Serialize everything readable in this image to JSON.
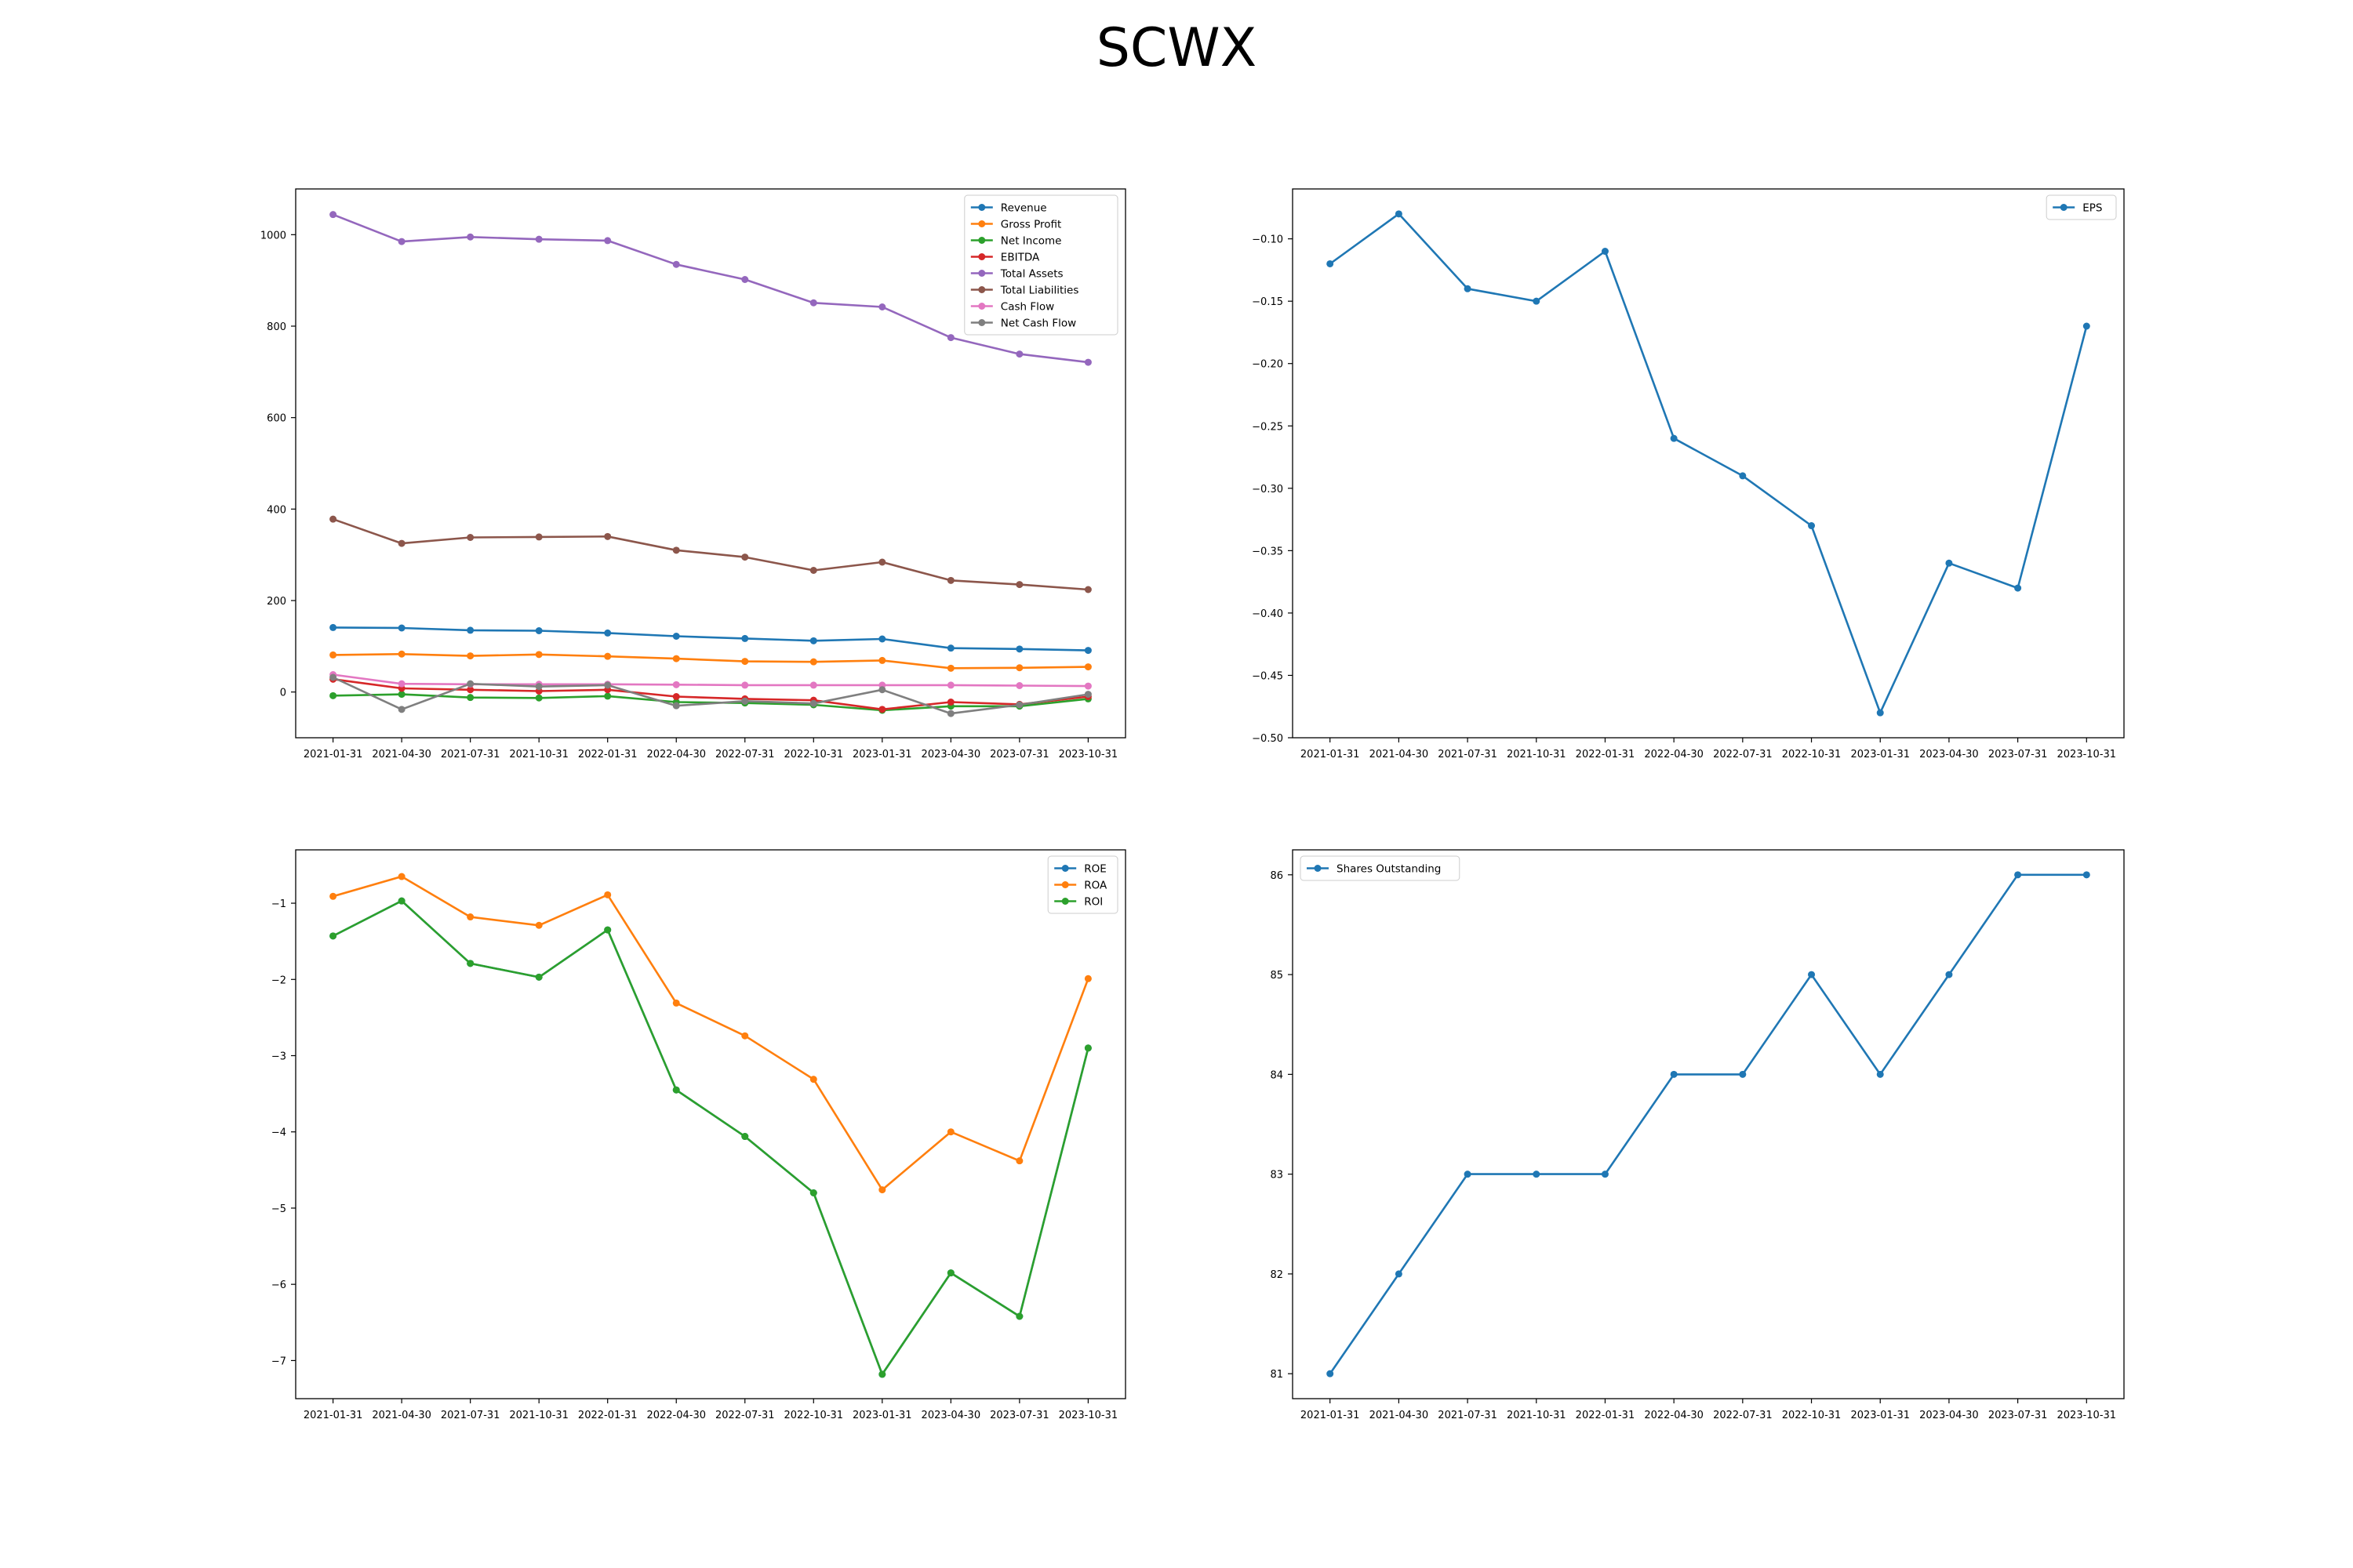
{
  "figure": {
    "title": "SCWX"
  },
  "chart_data": [
    {
      "type": "line",
      "x": [
        "2021-01-31",
        "2021-04-30",
        "2021-07-31",
        "2021-10-31",
        "2022-01-31",
        "2022-04-30",
        "2022-07-31",
        "2022-10-31",
        "2023-01-31",
        "2023-04-30",
        "2023-07-31",
        "2023-10-31"
      ],
      "ylim": [
        -100,
        1100
      ],
      "yticks": [
        0,
        200,
        400,
        600,
        800,
        1000
      ],
      "grid": false,
      "legend": "top-right",
      "series": [
        {
          "name": "Revenue",
          "color": "#1f77b4",
          "values": [
            141,
            140,
            135,
            134,
            129,
            122,
            117,
            112,
            116,
            96,
            94,
            91
          ]
        },
        {
          "name": "Gross Profit",
          "color": "#ff7f0e",
          "values": [
            81,
            83,
            79,
            82,
            78,
            73,
            67,
            66,
            69,
            52,
            53,
            55
          ]
        },
        {
          "name": "Net Income",
          "color": "#2ca02c",
          "values": [
            -8,
            -5,
            -12,
            -13,
            -9,
            -22,
            -24,
            -28,
            -40,
            -31,
            -31,
            -15
          ]
        },
        {
          "name": "EBITDA",
          "color": "#d62728",
          "values": [
            28,
            8,
            5,
            2,
            5,
            -10,
            -15,
            -18,
            -38,
            -22,
            -27,
            -10
          ]
        },
        {
          "name": "Total Assets",
          "color": "#9467bd",
          "values": [
            1044,
            985,
            995,
            990,
            987,
            935,
            902,
            851,
            842,
            775,
            739,
            721
          ]
        },
        {
          "name": "Total Liabilities",
          "color": "#8c564b",
          "values": [
            378,
            325,
            338,
            339,
            340,
            310,
            295,
            266,
            284,
            244,
            235,
            224
          ]
        },
        {
          "name": "Cash Flow",
          "color": "#e377c2",
          "values": [
            38,
            18,
            17,
            17,
            17,
            16,
            15,
            15,
            15,
            15,
            14,
            13
          ]
        },
        {
          "name": "Net Cash Flow",
          "color": "#7f7f7f",
          "values": [
            32,
            -38,
            18,
            12,
            15,
            -30,
            -20,
            -25,
            5,
            -47,
            -28,
            -5
          ]
        }
      ]
    },
    {
      "type": "line",
      "x": [
        "2021-01-31",
        "2021-04-30",
        "2021-07-31",
        "2021-10-31",
        "2022-01-31",
        "2022-04-30",
        "2022-07-31",
        "2022-10-31",
        "2023-01-31",
        "2023-04-30",
        "2023-07-31",
        "2023-10-31"
      ],
      "ylim": [
        -0.5,
        -0.06
      ],
      "yticks": [
        -0.5,
        -0.45,
        -0.4,
        -0.35,
        -0.3,
        -0.25,
        -0.2,
        -0.15,
        -0.1
      ],
      "yticklabels": [
        "−0.50",
        "−0.45",
        "−0.40",
        "−0.35",
        "−0.30",
        "−0.25",
        "−0.20",
        "−0.15",
        "−0.10"
      ],
      "grid": false,
      "legend": "top-right",
      "series": [
        {
          "name": "EPS",
          "color": "#1f77b4",
          "values": [
            -0.12,
            -0.08,
            -0.14,
            -0.15,
            -0.11,
            -0.26,
            -0.29,
            -0.33,
            -0.48,
            -0.36,
            -0.38,
            -0.17
          ]
        }
      ]
    },
    {
      "type": "line",
      "x": [
        "2021-01-31",
        "2021-04-30",
        "2021-07-31",
        "2021-10-31",
        "2022-01-31",
        "2022-04-30",
        "2022-07-31",
        "2022-10-31",
        "2023-01-31",
        "2023-04-30",
        "2023-07-31",
        "2023-10-31"
      ],
      "ylim": [
        -7.5,
        -0.3
      ],
      "yticks": [
        -7,
        -6,
        -5,
        -4,
        -3,
        -2,
        -1
      ],
      "yticklabels": [
        "−7",
        "−6",
        "−5",
        "−4",
        "−3",
        "−2",
        "−1"
      ],
      "grid": false,
      "legend": "top-right",
      "series": [
        {
          "name": "ROE",
          "color": "#1f77b4",
          "values": [
            -1.43,
            -0.97,
            -1.79,
            -1.97,
            -1.35,
            -3.45,
            -4.06,
            -4.8,
            -7.18,
            -5.85,
            -6.42,
            -2.9
          ]
        },
        {
          "name": "ROA",
          "color": "#ff7f0e",
          "values": [
            -0.91,
            -0.65,
            -1.18,
            -1.29,
            -0.89,
            -2.31,
            -2.74,
            -3.31,
            -4.76,
            -4.0,
            -4.38,
            -1.99
          ]
        },
        {
          "name": "ROI",
          "color": "#2ca02c",
          "values": [
            -1.43,
            -0.97,
            -1.79,
            -1.97,
            -1.35,
            -3.45,
            -4.06,
            -4.8,
            -7.18,
            -5.85,
            -6.42,
            -2.9
          ]
        }
      ]
    },
    {
      "type": "line",
      "x": [
        "2021-01-31",
        "2021-04-30",
        "2021-07-31",
        "2021-10-31",
        "2022-01-31",
        "2022-04-30",
        "2022-07-31",
        "2022-10-31",
        "2023-01-31",
        "2023-04-30",
        "2023-07-31",
        "2023-10-31"
      ],
      "ylim": [
        80.75,
        86.25
      ],
      "yticks": [
        81,
        82,
        83,
        84,
        85,
        86
      ],
      "grid": false,
      "legend": "top-left",
      "series": [
        {
          "name": "Shares Outstanding",
          "color": "#1f77b4",
          "values": [
            81,
            82,
            83,
            83,
            83,
            84,
            84,
            85,
            84,
            85,
            86,
            86
          ]
        }
      ]
    }
  ]
}
